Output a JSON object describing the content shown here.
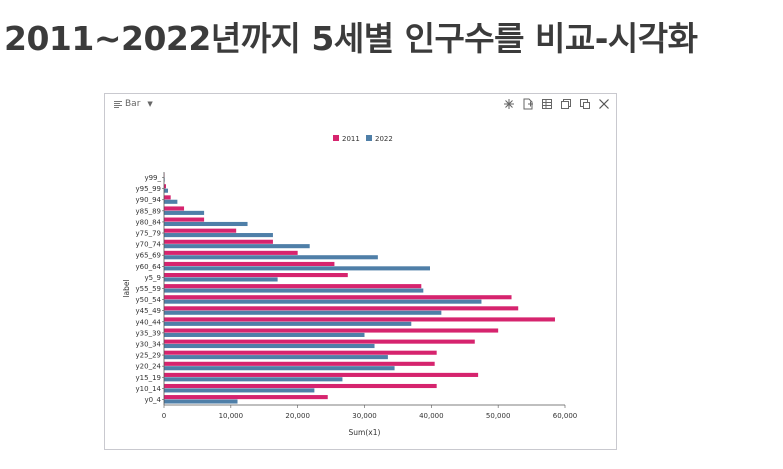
{
  "page": {
    "title": "2011~2022년까지 5세별 인구수를 비교-시각화"
  },
  "panel": {
    "chart_type_label": "Bar",
    "tools": [
      "crosshair-icon",
      "export-file-icon",
      "table-icon",
      "copy-icon",
      "duplicate-icon",
      "close-icon"
    ]
  },
  "colors": {
    "series_2011": "#d6246e",
    "series_2022": "#4f7fa8",
    "axis": "#555555"
  },
  "chart_data": {
    "type": "bar",
    "orientation": "horizontal",
    "categories": [
      "y0_4",
      "y10_14",
      "y15_19",
      "y20_24",
      "y25_29",
      "y30_34",
      "y35_39",
      "y40_44",
      "y45_49",
      "y50_54",
      "y55_59",
      "y5_9",
      "y60_64",
      "y65_69",
      "y70_74",
      "y75_79",
      "y80_84",
      "y85_89",
      "y90_94",
      "y95_99",
      "y99_"
    ],
    "series": [
      {
        "name": "2011",
        "values": [
          24500,
          40800,
          47000,
          40500,
          40800,
          46500,
          50000,
          58500,
          53000,
          52000,
          38500,
          27500,
          25500,
          20000,
          16300,
          10800,
          6000,
          3000,
          1000,
          300,
          50
        ]
      },
      {
        "name": "2022",
        "values": [
          11000,
          22500,
          26700,
          34500,
          33500,
          31500,
          30000,
          37000,
          41500,
          47500,
          38800,
          17000,
          39800,
          32000,
          21800,
          16300,
          12500,
          6000,
          2000,
          600,
          100
        ]
      }
    ],
    "xlabel": "Sum(x1)",
    "ylabel": "label",
    "xlim": [
      0,
      60000
    ],
    "xticks": [
      "0",
      "10,000",
      "20,000",
      "30,000",
      "40,000",
      "50,000",
      "60,000"
    ],
    "legend": "top-center",
    "grid": false
  }
}
